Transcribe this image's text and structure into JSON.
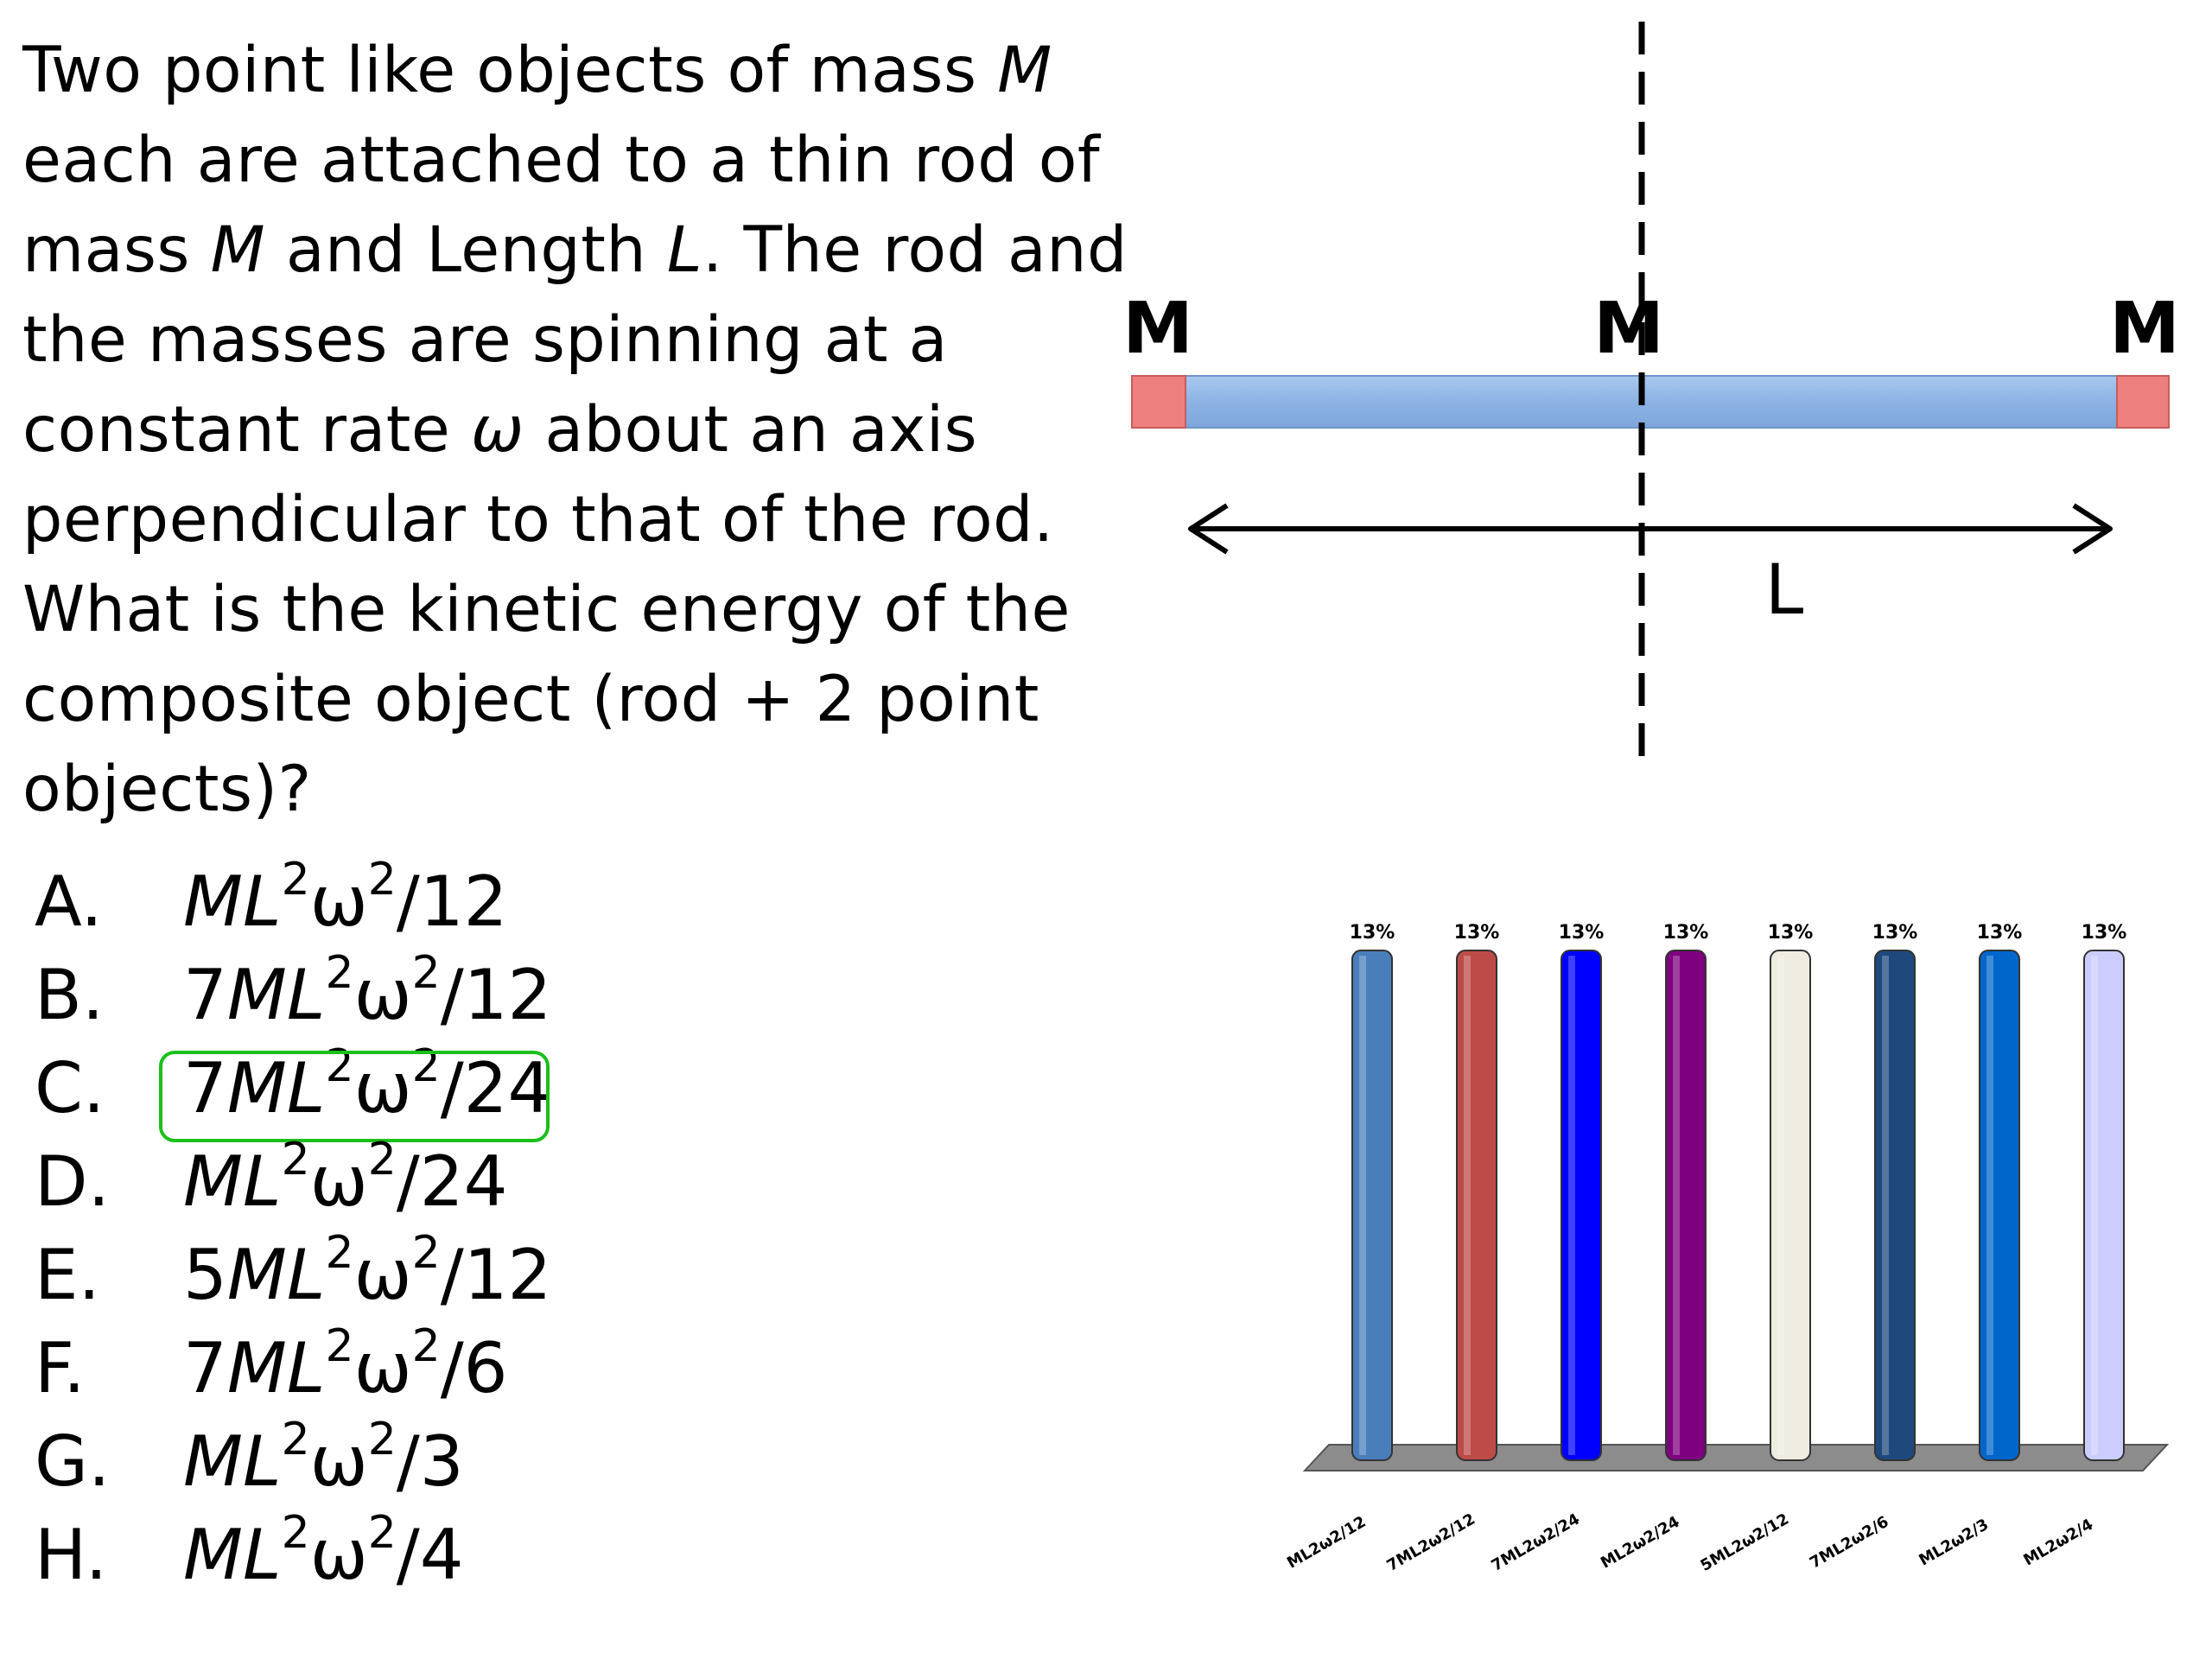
{
  "question": {
    "lines": [
      [
        "Two point like objects of mass ",
        {
          "i": "M"
        }
      ],
      [
        "each are attached to a thin rod of"
      ],
      [
        "mass ",
        {
          "i": "M"
        },
        " and Length ",
        {
          "i": "L"
        },
        ". The rod and"
      ],
      [
        "the masses are spinning at a"
      ],
      [
        "constant rate ",
        {
          "i": "ω"
        },
        " about an axis"
      ],
      [
        "perpendicular to that of the rod."
      ],
      [
        "What is the kinetic energy of the"
      ],
      [
        "composite object (rod + 2 point"
      ],
      [
        "objects)?"
      ]
    ]
  },
  "options": [
    {
      "letter": "A.",
      "coef": "",
      "den": "12"
    },
    {
      "letter": "B.",
      "coef": "7",
      "den": "12"
    },
    {
      "letter": "C.",
      "coef": "7",
      "den": "24",
      "highlighted": true
    },
    {
      "letter": "D.",
      "coef": "",
      "den": "24"
    },
    {
      "letter": "E.",
      "coef": "5",
      "den": "12"
    },
    {
      "letter": "F.",
      "coef": "7",
      "den": "6"
    },
    {
      "letter": "G.",
      "coef": "",
      "den": "3"
    },
    {
      "letter": "H.",
      "coef": "",
      "den": "4"
    }
  ],
  "diagram": {
    "mass_labels": [
      "M",
      "M",
      "M"
    ],
    "length_label": "L",
    "colors": {
      "rod": "#8fb4e3",
      "end_mass": "#ee7f7f",
      "axis": "#000000"
    }
  },
  "chart_data": {
    "type": "bar",
    "categories": [
      "ML2ω2/12",
      "7ML2ω2/12",
      "7ML2ω2/24",
      "ML2ω2/24",
      "5ML2ω2/12",
      "7ML2ω2/6",
      "ML2ω2/3",
      "ML2ω2/4"
    ],
    "values": [
      13,
      13,
      13,
      13,
      13,
      13,
      13,
      13
    ],
    "value_labels": [
      "13%",
      "13%",
      "13%",
      "13%",
      "13%",
      "13%",
      "13%",
      "13%"
    ],
    "colors": [
      "#4a7ebb",
      "#be4b48",
      "#0000ff",
      "#7f007f",
      "#eeece1",
      "#1f497d",
      "#0066cc",
      "#ccccff"
    ],
    "ylim": [
      0,
      13
    ],
    "grid": false,
    "legend": false,
    "title": "",
    "xlabel": "",
    "ylabel": ""
  }
}
